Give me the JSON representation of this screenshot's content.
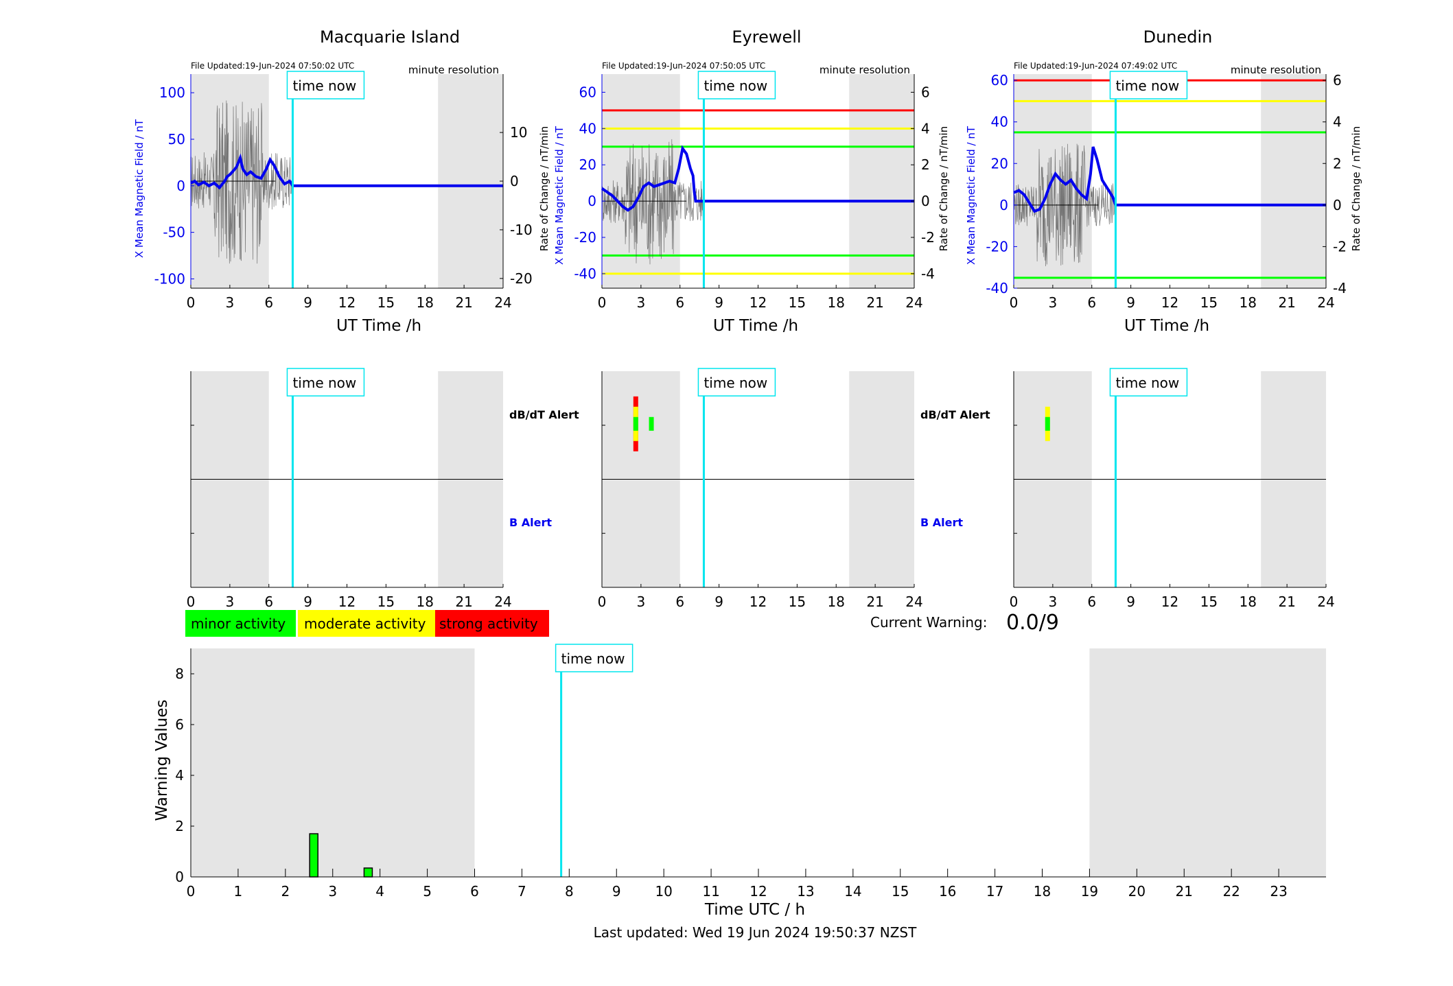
{
  "time_now_label": "time now",
  "time_now_h": 7.83,
  "shade": [
    [
      0,
      6
    ],
    [
      19,
      24
    ]
  ],
  "xlabel_top": "UT Time /h",
  "file_note": "minute resolution",
  "left_ylabel": "X Mean Magnetic Field / nT",
  "right_ylabel": "Rate of Change / nT/min",
  "alert_labels": {
    "dbdt": "dB/dT Alert",
    "b": "B Alert"
  },
  "legend": [
    {
      "label": "minor activity",
      "color": "#00ff00"
    },
    {
      "label": "moderate activity",
      "color": "#ffff00"
    },
    {
      "label": "strong activity",
      "color": "#ff0000"
    }
  ],
  "current_warning_label": "Current Warning:",
  "current_warning_value": "0.0/9",
  "footer": "Last updated: Wed 19 Jun 2024 19:50:37 NZST",
  "colors": {
    "field": "#0000ee",
    "rate": "#555555",
    "time_now": "#00e5ee",
    "shade": "#e5e5e5",
    "green": "#00ff00",
    "yellow": "#ffff00",
    "red": "#ff0000"
  },
  "chart_data": [
    {
      "type": "line",
      "title": "Macquarie Island",
      "file_updated": "File Updated:19-Jun-2024 07:50:02 UTC",
      "xlabel": "UT Time /h",
      "xlim": [
        0,
        24
      ],
      "xticks": [
        0,
        3,
        6,
        9,
        12,
        15,
        18,
        21,
        24
      ],
      "ylabel_left": "X Mean Magnetic Field / nT",
      "ylim_left": [
        -110,
        120
      ],
      "yticks_left": [
        -100,
        -50,
        0,
        50,
        100
      ],
      "ylabel_right": "Rate of Change / nT/min",
      "ylim_right": [
        -22,
        22
      ],
      "yticks_right": [
        -20,
        -10,
        0,
        10
      ],
      "thresholds": [],
      "series": [
        {
          "x": [
            0,
            0.3,
            0.6,
            1,
            1.4,
            1.8,
            2.2,
            2.6,
            2.8,
            3.0,
            3.2,
            3.5,
            3.8,
            4.0,
            4.3,
            4.6,
            5.0,
            5.4,
            5.8,
            6.1,
            6.4,
            6.8,
            7.2,
            7.6,
            7.83,
            24
          ],
          "values": [
            3,
            5,
            1,
            4,
            0,
            3,
            -2,
            5,
            10,
            12,
            15,
            20,
            30,
            18,
            12,
            15,
            10,
            8,
            18,
            28,
            22,
            10,
            2,
            5,
            0,
            0
          ]
        }
      ],
      "rate_range": [
        -17,
        17
      ]
    },
    {
      "type": "line",
      "title": "Eyrewell",
      "file_updated": "File Updated:19-Jun-2024 07:50:05 UTC",
      "xlabel": "UT Time /h",
      "xlim": [
        0,
        24
      ],
      "xticks": [
        0,
        3,
        6,
        9,
        12,
        15,
        18,
        21,
        24
      ],
      "ylabel_left": "X Mean Magnetic Field / nT",
      "ylim_left": [
        -48,
        70
      ],
      "yticks_left": [
        -40,
        -20,
        0,
        20,
        40,
        60
      ],
      "ylabel_right": "Rate of Change / nT/min",
      "ylim_right": [
        -4.8,
        7.0
      ],
      "yticks_right": [
        -4,
        -2,
        0,
        2,
        4,
        6
      ],
      "thresholds": [
        {
          "y": 50,
          "color": "#ff0000"
        },
        {
          "y": 40,
          "color": "#ffff00"
        },
        {
          "y": 30,
          "color": "#00ff00"
        },
        {
          "y": -30,
          "color": "#00ff00"
        },
        {
          "y": -40,
          "color": "#ffff00"
        }
      ],
      "series": [
        {
          "x": [
            0,
            0.4,
            0.8,
            1.2,
            1.6,
            2.0,
            2.4,
            2.8,
            3.2,
            3.6,
            4.0,
            4.4,
            4.8,
            5.2,
            5.6,
            5.9,
            6.2,
            6.5,
            6.8,
            7.0,
            7.1,
            7.2,
            7.83,
            24
          ],
          "values": [
            7,
            5,
            3,
            0,
            -3,
            -5,
            -3,
            2,
            8,
            10,
            8,
            9,
            10,
            11,
            10,
            18,
            29,
            26,
            18,
            14,
            5,
            0,
            0,
            0
          ]
        }
      ],
      "rate_range": [
        -3.5,
        3.5
      ]
    },
    {
      "type": "line",
      "title": "Dunedin",
      "file_updated": "File Updated:19-Jun-2024 07:49:02 UTC",
      "xlabel": "UT Time /h",
      "xlim": [
        0,
        24
      ],
      "xticks": [
        0,
        3,
        6,
        9,
        12,
        15,
        18,
        21,
        24
      ],
      "ylabel_left": "X Mean Magnetic Field / nT",
      "ylim_left": [
        -40,
        63
      ],
      "yticks_left": [
        -40,
        -20,
        0,
        20,
        40,
        60
      ],
      "ylabel_right": "Rate of Change / nT/min",
      "ylim_right": [
        -4.0,
        6.3
      ],
      "yticks_right": [
        -4,
        -2,
        0,
        2,
        4,
        6
      ],
      "thresholds": [
        {
          "y": 60,
          "color": "#ff0000"
        },
        {
          "y": 50,
          "color": "#ffff00"
        },
        {
          "y": 35,
          "color": "#00ff00"
        },
        {
          "y": -35,
          "color": "#00ff00"
        }
      ],
      "series": [
        {
          "x": [
            0,
            0.4,
            0.8,
            1.2,
            1.6,
            2.0,
            2.4,
            2.8,
            3.2,
            3.6,
            4.0,
            4.4,
            4.8,
            5.2,
            5.6,
            5.9,
            6.1,
            6.4,
            6.8,
            7.2,
            7.6,
            7.83,
            24
          ],
          "values": [
            6,
            7,
            5,
            1,
            -3,
            -2,
            3,
            10,
            15,
            12,
            10,
            12,
            8,
            5,
            3,
            15,
            28,
            22,
            12,
            8,
            4,
            0,
            0
          ]
        }
      ],
      "rate_range": [
        -3.0,
        3.0
      ]
    },
    {
      "type": "alert",
      "station": "Macquarie Island",
      "xlim": [
        0,
        24
      ],
      "xticks": [
        0,
        3,
        6,
        9,
        12,
        15,
        18,
        21,
        24
      ],
      "dbdt_bars": [],
      "b_bars": []
    },
    {
      "type": "alert",
      "station": "Eyrewell",
      "xlim": [
        0,
        24
      ],
      "xticks": [
        0,
        3,
        6,
        9,
        12,
        15,
        18,
        21,
        24
      ],
      "dbdt_bars": [
        {
          "x": 2.6,
          "level": 3
        },
        {
          "x": 3.8,
          "level": 1
        }
      ],
      "b_bars": []
    },
    {
      "type": "alert",
      "station": "Dunedin",
      "xlim": [
        0,
        24
      ],
      "xticks": [
        0,
        3,
        6,
        9,
        12,
        15,
        18,
        21,
        24
      ],
      "dbdt_bars": [
        {
          "x": 2.6,
          "level": 2
        }
      ],
      "b_bars": []
    },
    {
      "type": "bar",
      "xlabel": "Time UTC / h",
      "ylabel": "Warning Values",
      "xlim": [
        0,
        24
      ],
      "ylim": [
        0,
        9
      ],
      "xticks": [
        0,
        1,
        2,
        3,
        4,
        5,
        6,
        7,
        8,
        9,
        10,
        11,
        12,
        13,
        14,
        15,
        16,
        17,
        18,
        19,
        20,
        21,
        22,
        23
      ],
      "yticks": [
        0,
        2,
        4,
        6,
        8
      ],
      "bars": [
        {
          "x": 2.6,
          "value": 1.7,
          "color": "#00ff00"
        },
        {
          "x": 3.75,
          "value": 0.35,
          "color": "#00ff00"
        }
      ]
    }
  ]
}
